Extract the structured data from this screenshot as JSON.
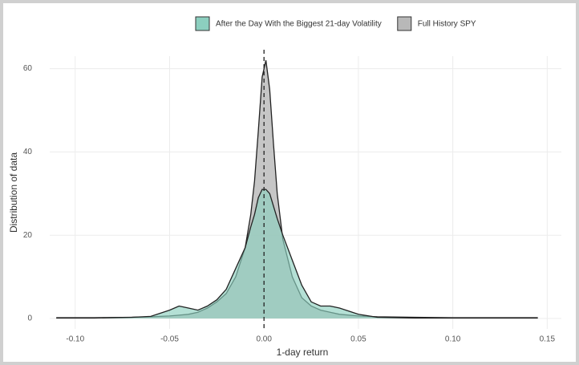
{
  "chart_data": {
    "type": "density",
    "xlabel": "1-day return",
    "ylabel": "Distribution of data",
    "x": [
      -0.11,
      -0.09,
      -0.07,
      -0.06,
      -0.05,
      -0.045,
      -0.04,
      -0.035,
      -0.03,
      -0.025,
      -0.02,
      -0.015,
      -0.01,
      -0.007,
      -0.005,
      -0.003,
      -0.001,
      0.001,
      0.003,
      0.005,
      0.007,
      0.01,
      0.015,
      0.02,
      0.025,
      0.03,
      0.035,
      0.04,
      0.05,
      0.06,
      0.08,
      0.1,
      0.12,
      0.145
    ],
    "series": [
      {
        "name": "Full History SPY",
        "color": "#b8b8b8",
        "values": [
          0.2,
          0.2,
          0.3,
          0.4,
          0.6,
          0.8,
          1.0,
          1.5,
          2.5,
          4,
          6,
          10,
          17,
          25,
          33,
          45,
          58,
          62,
          55,
          42,
          30,
          19,
          10,
          5,
          3,
          2,
          1.5,
          1,
          0.6,
          0.4,
          0.3,
          0.2,
          0.2,
          0.2
        ]
      },
      {
        "name": "After the Day With the Biggest 21-day Volatility",
        "color": "#8ccfbf",
        "values": [
          0.1,
          0.1,
          0.3,
          0.5,
          2,
          3,
          2.5,
          2,
          3,
          4.5,
          7,
          12,
          17,
          22,
          25,
          29,
          31,
          31,
          30,
          27,
          24,
          20,
          14,
          8,
          4,
          3,
          3,
          2.5,
          1,
          0.3,
          0.1,
          0.1,
          0.1,
          0.1
        ]
      }
    ],
    "legend_order": [
      1,
      0
    ],
    "vline": 0,
    "xlim": [
      -0.1135,
      0.1575
    ],
    "ylim": [
      -2.5,
      63
    ],
    "xticks": [
      {
        "value": -0.1,
        "label": "-0.10"
      },
      {
        "value": -0.05,
        "label": "-0.05"
      },
      {
        "value": 0,
        "label": "0.00"
      },
      {
        "value": 0.05,
        "label": "0.05"
      },
      {
        "value": 0.1,
        "label": "0.10"
      },
      {
        "value": 0.15,
        "label": "0.15"
      }
    ],
    "yticks": [
      0,
      20,
      40,
      60
    ],
    "grid": true,
    "legend": "top"
  }
}
